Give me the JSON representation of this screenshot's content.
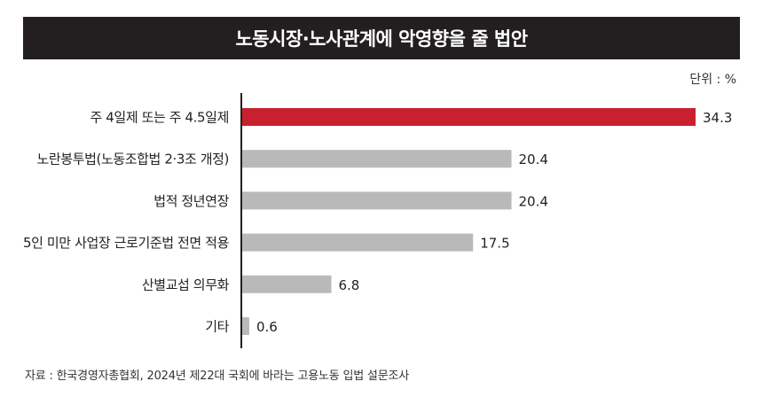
{
  "header": {
    "title": "노동시장·노사관계에 악영향을 줄 법안"
  },
  "unit_label": "단위 : %",
  "source": "자료 : 한국경영자총협회, 2024년 제22대 국회에 바라는 고용노동 입법 설문조사",
  "colors": {
    "highlight": "#c8202f",
    "bar": "#b9b9b9",
    "axis": "#231f20",
    "title_bg": "#231f20"
  },
  "chart_data": {
    "type": "bar",
    "orientation": "horizontal",
    "title": "노동시장·노사관계에 악영향을 줄 법안",
    "unit": "%",
    "categories": [
      "주 4일제 또는 주 4.5일제",
      "노란봉투법(노동조합법 2·3조 개정)",
      "법적 정년연장",
      "5인 미만 사업장 근로기준법 전면 적용",
      "산별교섭 의무화",
      "기타"
    ],
    "values": [
      34.3,
      20.4,
      20.4,
      17.5,
      6.8,
      0.6
    ],
    "value_labels": [
      "34.3",
      "20.4",
      "20.4",
      "17.5",
      "6.8",
      "0.6"
    ],
    "highlight_index": 0,
    "xlim": [
      0,
      34.3
    ],
    "grid": false,
    "legend": "none"
  }
}
